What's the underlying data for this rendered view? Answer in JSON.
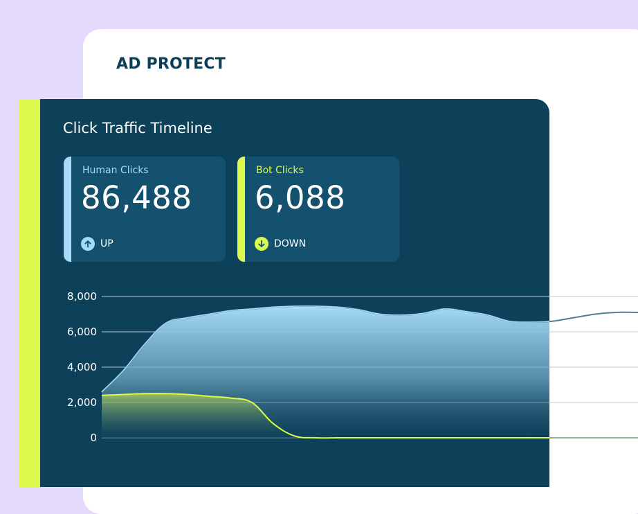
{
  "back_card": {
    "title": "AD PROTECT"
  },
  "panel": {
    "title": "Click Traffic Timeline"
  },
  "stats": {
    "human": {
      "label": "Human Clicks",
      "value": "86,488",
      "trend": "UP",
      "trend_icon": "arrow-up-icon"
    },
    "bot": {
      "label": "Bot Clicks",
      "value": "6,088",
      "trend": "DOWN",
      "trend_icon": "arrow-down-icon"
    }
  },
  "colors": {
    "accent_lime": "#dcfa4b",
    "human_blue": "#a6dbf7",
    "panel_bg": "#0d4059",
    "lavender_bg": "#e4dafb"
  },
  "chart_data": {
    "type": "area",
    "title": "Click Traffic Timeline",
    "xlabel": "",
    "ylabel": "",
    "ylim": [
      0,
      8000
    ],
    "yticks": [
      "8,000",
      "6,000",
      "4,000",
      "2,000",
      "0"
    ],
    "ytick_values": [
      8000,
      6000,
      4000,
      2000,
      0
    ],
    "grid": true,
    "x": [
      0,
      1,
      2,
      3,
      4,
      5,
      6,
      7,
      8,
      9,
      10,
      11,
      12,
      13,
      14,
      15,
      16,
      17,
      18,
      19,
      20,
      21,
      22,
      23,
      24,
      25
    ],
    "series": [
      {
        "name": "Human Clicks",
        "values": [
          2600,
          3800,
          5300,
          6500,
          6800,
          7000,
          7200,
          7300,
          7400,
          7450,
          7450,
          7400,
          7250,
          7000,
          6950,
          7050,
          7300,
          7150,
          6950,
          6600,
          6550,
          6600,
          6800,
          7000,
          7100,
          7100
        ]
      },
      {
        "name": "Bot Clicks",
        "values": [
          2400,
          2450,
          2500,
          2500,
          2450,
          2350,
          2250,
          2000,
          800,
          100,
          0,
          0,
          0,
          0,
          0,
          0,
          0,
          0,
          0,
          0,
          0,
          0,
          0,
          0,
          0,
          0
        ]
      }
    ]
  }
}
